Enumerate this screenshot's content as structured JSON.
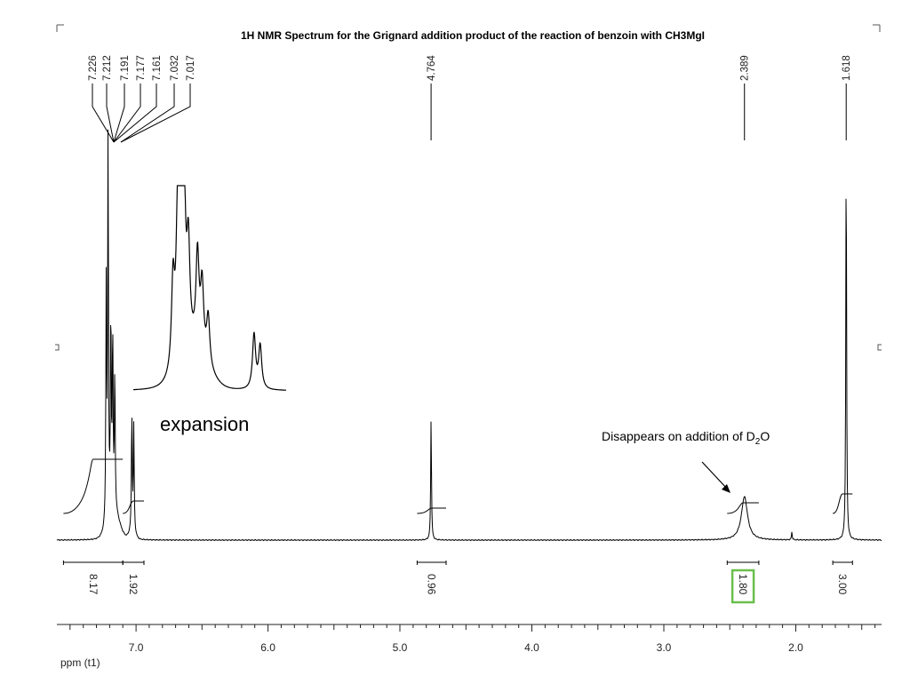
{
  "chart_data": {
    "type": "line",
    "title": "1H NMR Spectrum for the Grignard addition product of the reaction of benzoin with CH3MgI",
    "xlabel": "ppm (t1)",
    "xlim": [
      7.6,
      1.35
    ],
    "x_reversed": true,
    "x_ticks": [
      "7.0",
      "6.0",
      "5.0",
      "4.0",
      "3.0",
      "2.0"
    ],
    "peak_labels": [
      "7.226",
      "7.212",
      "7.191",
      "7.177",
      "7.161",
      "7.032",
      "7.017",
      "4.764",
      "2.389",
      "1.618"
    ],
    "peaks": [
      {
        "ppm": 7.226,
        "height": 0.6
      },
      {
        "ppm": 7.212,
        "height": 0.98
      },
      {
        "ppm": 7.191,
        "height": 0.5
      },
      {
        "ppm": 7.177,
        "height": 0.45
      },
      {
        "ppm": 7.161,
        "height": 0.35
      },
      {
        "ppm": 7.032,
        "height": 0.3
      },
      {
        "ppm": 7.017,
        "height": 0.27
      },
      {
        "ppm": 4.764,
        "height": 0.31
      },
      {
        "ppm": 2.389,
        "height": 0.11
      },
      {
        "ppm": 2.03,
        "height": 0.02
      },
      {
        "ppm": 1.618,
        "height": 1.0
      }
    ],
    "integrals": [
      {
        "label": "8.17",
        "from": 7.55,
        "to": 7.1,
        "highlight": false
      },
      {
        "label": "1.92",
        "from": 7.1,
        "to": 6.94,
        "highlight": false
      },
      {
        "label": "0.96",
        "from": 4.87,
        "to": 4.65,
        "highlight": false
      },
      {
        "label": "1.80",
        "from": 2.52,
        "to": 2.28,
        "highlight": true
      },
      {
        "label": "3.00",
        "from": 1.72,
        "to": 1.57,
        "highlight": false
      }
    ],
    "annotations": {
      "expansion": "expansion",
      "d2o_text": "Disappears on addition of D",
      "d2o_sub": "2",
      "d2o_tail": "O"
    },
    "colors": {
      "trace": "#000000",
      "highlight": "#6abf4b",
      "axis": "#222222"
    },
    "grid": false,
    "legend": "none"
  }
}
